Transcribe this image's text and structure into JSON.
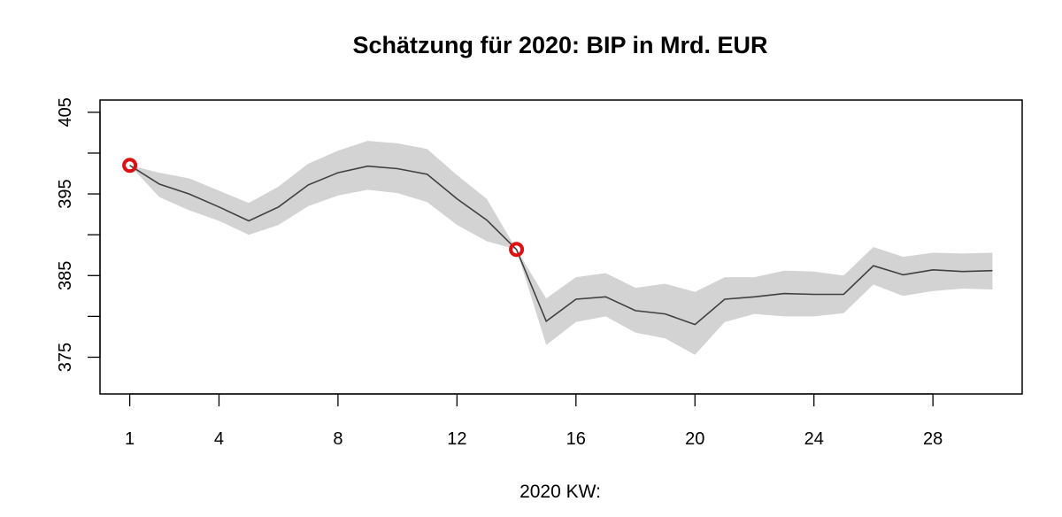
{
  "chart_data": {
    "type": "line",
    "title": "Schätzung für 2020: BIP in Mrd. EUR",
    "xlabel": "2020 KW:",
    "ylabel": "",
    "xlim": [
      0,
      31
    ],
    "ylim": [
      370.5,
      406.5
    ],
    "x_ticks": [
      1,
      4,
      8,
      12,
      16,
      20,
      24,
      28
    ],
    "y_ticks": [
      375,
      385,
      395,
      405
    ],
    "grid": false,
    "legend": "none",
    "series": [
      {
        "x": [
          1,
          2,
          3,
          4,
          5,
          6,
          7,
          8,
          9,
          10,
          11,
          12,
          13,
          14,
          15,
          16,
          17,
          18,
          19,
          20,
          21,
          22,
          23,
          24,
          25,
          26,
          27,
          28,
          29,
          30
        ],
        "values": [
          398.5,
          396.2,
          395.0,
          393.4,
          391.7,
          393.4,
          396.1,
          397.6,
          398.4,
          398.1,
          397.4,
          394.4,
          391.8,
          388.2,
          379.4,
          382.1,
          382.4,
          380.7,
          380.3,
          379.0,
          382.1,
          382.4,
          382.8,
          382.7,
          382.7,
          386.2,
          385.1,
          385.7,
          385.5,
          385.6
        ],
        "lower": [
          398.5,
          394.6,
          393.0,
          391.7,
          390.0,
          391.2,
          393.5,
          394.8,
          395.5,
          395.1,
          394.0,
          391.2,
          389.2,
          388.2,
          376.5,
          379.3,
          380.0,
          378.0,
          377.3,
          375.3,
          379.3,
          380.3,
          380.0,
          380.0,
          380.4,
          383.9,
          382.5,
          383.1,
          383.4,
          383.3
        ],
        "upper": [
          398.5,
          397.6,
          396.9,
          395.4,
          393.9,
          395.9,
          398.7,
          400.3,
          401.5,
          401.2,
          400.5,
          397.3,
          394.4,
          388.2,
          382.2,
          384.8,
          385.3,
          383.5,
          384.0,
          383.0,
          384.8,
          384.8,
          385.6,
          385.5,
          385.0,
          388.5,
          387.3,
          387.8,
          387.7,
          387.8
        ],
        "band_color": "#d3d3d3",
        "line_color": "#404040"
      }
    ],
    "highlight_points": [
      {
        "x": 1,
        "y": 398.5
      },
      {
        "x": 14,
        "y": 388.2
      }
    ],
    "highlight_color": "#dd1111"
  }
}
